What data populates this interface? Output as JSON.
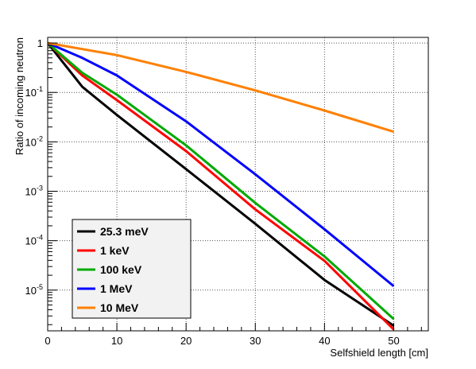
{
  "chart_data": {
    "type": "line",
    "title": "",
    "xlabel": "Selfshield length [cm]",
    "ylabel": "Ratio of incoming neutron",
    "xlim": [
      0,
      55
    ],
    "ylim": [
      1.5e-06,
      1.3
    ],
    "y_scale": "log",
    "grid": true,
    "legend_position": "bottom-left",
    "x_ticks": [
      0,
      10,
      20,
      30,
      40,
      50
    ],
    "x_tick_labels": [
      "0",
      "10",
      "20",
      "30",
      "40",
      "50"
    ],
    "y_ticks": [
      1e-05,
      0.0001,
      0.001,
      0.01,
      0.1,
      1
    ],
    "y_tick_labels": [
      {
        "base": "10",
        "exp": "-5"
      },
      {
        "base": "10",
        "exp": "-4"
      },
      {
        "base": "10",
        "exp": "-3"
      },
      {
        "base": "10",
        "exp": "-2"
      },
      {
        "base": "10",
        "exp": "-1"
      },
      {
        "base": "1",
        "exp": ""
      }
    ],
    "series": [
      {
        "name": "25.3 meV",
        "color": "#000000",
        "x": [
          0,
          5,
          10,
          20,
          30,
          40,
          50
        ],
        "y": [
          1,
          0.13,
          0.035,
          0.0028,
          0.00022,
          1.6e-05,
          1.9e-06
        ]
      },
      {
        "name": "1 keV",
        "color": "#ff0000",
        "x": [
          0,
          5,
          10,
          20,
          30,
          40,
          50
        ],
        "y": [
          1,
          0.22,
          0.07,
          0.0065,
          0.00043,
          3.9e-05,
          1.6e-06
        ]
      },
      {
        "name": "100 keV",
        "color": "#00aa00",
        "x": [
          0,
          5,
          10,
          20,
          30,
          40,
          50
        ],
        "y": [
          1,
          0.25,
          0.09,
          0.0085,
          0.00058,
          4.8e-05,
          2.6e-06
        ]
      },
      {
        "name": "1 MeV",
        "color": "#0000ff",
        "x": [
          0,
          5,
          10,
          20,
          30,
          40,
          50
        ],
        "y": [
          1,
          0.5,
          0.22,
          0.026,
          0.0022,
          0.00017,
          1.2e-05
        ]
      },
      {
        "name": "10 MeV",
        "color": "#ff8000",
        "x": [
          0,
          10,
          20,
          30,
          40,
          50
        ],
        "y": [
          1,
          0.57,
          0.26,
          0.11,
          0.043,
          0.016
        ]
      }
    ]
  }
}
